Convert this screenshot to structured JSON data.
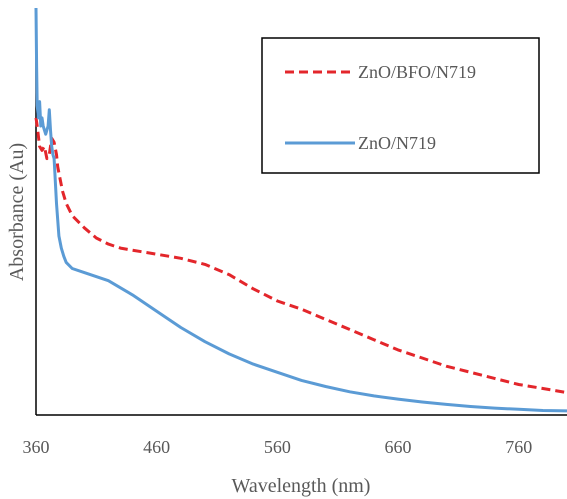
{
  "chart_data": {
    "type": "line",
    "title": "",
    "xlabel": "Wavelength (nm)",
    "ylabel": "Absorbance (Au)",
    "xlim": [
      360,
      800
    ],
    "ylim": [
      0,
      1
    ],
    "xticks": [
      360,
      460,
      560,
      660,
      760
    ],
    "yticks_shown": false,
    "grid": false,
    "legend": {
      "position": "top-right",
      "border": true
    },
    "series": [
      {
        "name": "ZnO/BFO/N719",
        "color": "#e3262b",
        "style": "dashed",
        "x": [
          360,
          361,
          363,
          365,
          367,
          369,
          371,
          373,
          375,
          377,
          378,
          380,
          382,
          385,
          390,
          400,
          410,
          420,
          430,
          440,
          460,
          480,
          500,
          520,
          540,
          560,
          580,
          600,
          620,
          640,
          660,
          680,
          700,
          720,
          740,
          760,
          780,
          800
        ],
        "y": [
          0.73,
          0.71,
          0.66,
          0.65,
          0.66,
          0.63,
          0.64,
          0.68,
          0.67,
          0.64,
          0.61,
          0.58,
          0.55,
          0.52,
          0.49,
          0.46,
          0.435,
          0.42,
          0.41,
          0.405,
          0.395,
          0.385,
          0.37,
          0.345,
          0.31,
          0.28,
          0.26,
          0.235,
          0.21,
          0.185,
          0.16,
          0.14,
          0.12,
          0.105,
          0.09,
          0.075,
          0.065,
          0.055
        ]
      },
      {
        "name": "ZnO/N719",
        "color": "#5b9bd5",
        "style": "solid",
        "x": [
          360,
          360.5,
          361,
          362,
          363,
          364,
          365,
          366,
          367,
          368,
          369,
          370,
          371,
          372,
          373,
          374,
          375,
          377,
          379,
          381,
          383,
          385,
          390,
          400,
          420,
          440,
          460,
          480,
          500,
          520,
          540,
          560,
          580,
          600,
          620,
          640,
          660,
          680,
          700,
          720,
          740,
          760,
          780,
          800
        ],
        "y": [
          1.0,
          0.86,
          0.76,
          0.73,
          0.77,
          0.71,
          0.73,
          0.71,
          0.7,
          0.69,
          0.7,
          0.71,
          0.75,
          0.7,
          0.66,
          0.64,
          0.63,
          0.52,
          0.44,
          0.41,
          0.39,
          0.375,
          0.36,
          0.35,
          0.33,
          0.295,
          0.255,
          0.215,
          0.18,
          0.15,
          0.125,
          0.105,
          0.085,
          0.07,
          0.057,
          0.047,
          0.039,
          0.032,
          0.026,
          0.021,
          0.017,
          0.014,
          0.011,
          0.01
        ]
      }
    ]
  }
}
